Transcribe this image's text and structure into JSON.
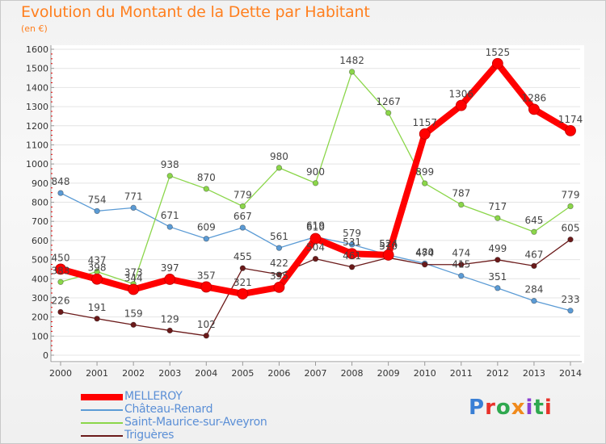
{
  "title": "Evolution du Montant de la Dette par Habitant",
  "subtitle": "(en €)",
  "brand": "Proxiti",
  "chart_data": {
    "type": "line",
    "x": [
      "2000",
      "2001",
      "2002",
      "2003",
      "2004",
      "2005",
      "2006",
      "2007",
      "2008",
      "2009",
      "2010",
      "2011",
      "2012",
      "2013",
      "2014"
    ],
    "ylim": [
      0,
      1600
    ],
    "yticks": [
      0,
      100,
      200,
      300,
      400,
      500,
      600,
      700,
      800,
      900,
      1000,
      1100,
      1200,
      1300,
      1400,
      1500,
      1600
    ],
    "grid": "horizontal",
    "legend": "bottom-left",
    "series": [
      {
        "name": "MELLEROY",
        "color": "#ff0000",
        "values": [
          450,
          398,
          344,
          397,
          357,
          321,
          355,
          610,
          531,
          524,
          1157,
          1306,
          1525,
          1286,
          1174
        ],
        "labels": [
          "450",
          "398",
          "344",
          "397",
          "357",
          "321",
          "355",
          "610",
          "531",
          "524",
          "1157",
          "1306",
          "1525",
          "1286",
          "1174"
        ]
      },
      {
        "name": "Château-Renard",
        "color": "#5b9bd5",
        "values": [
          848,
          754,
          771,
          671,
          609,
          667,
          561,
          619,
          579,
          524,
          480,
          415,
          351,
          284,
          233
        ],
        "labels": [
          "848",
          "754",
          "771",
          "671",
          "609",
          "667",
          "561",
          "619",
          "579",
          "524",
          "480",
          "415",
          "351",
          "284",
          "233"
        ]
      },
      {
        "name": "Saint-Maurice-sur-Aveyron",
        "color": "#8bd64a",
        "values": [
          383,
          437,
          373,
          938,
          870,
          779,
          980,
          900,
          1482,
          1267,
          899,
          787,
          717,
          645,
          779
        ],
        "labels": [
          "383",
          "437",
          "373",
          "938",
          "870",
          "779",
          "980",
          "900",
          "1482",
          "1267",
          "899",
          "787",
          "717",
          "645",
          "779"
        ]
      },
      {
        "name": "Triguères",
        "color": "#6b1a1a",
        "values": [
          226,
          191,
          159,
          129,
          102,
          455,
          422,
          504,
          461,
          510,
          474,
          474,
          499,
          467,
          605
        ],
        "labels": [
          "226",
          "191",
          "159",
          "129",
          "102",
          "455",
          "422",
          "504",
          "461",
          "510",
          "474",
          "474",
          "499",
          "467",
          "605"
        ]
      }
    ]
  }
}
